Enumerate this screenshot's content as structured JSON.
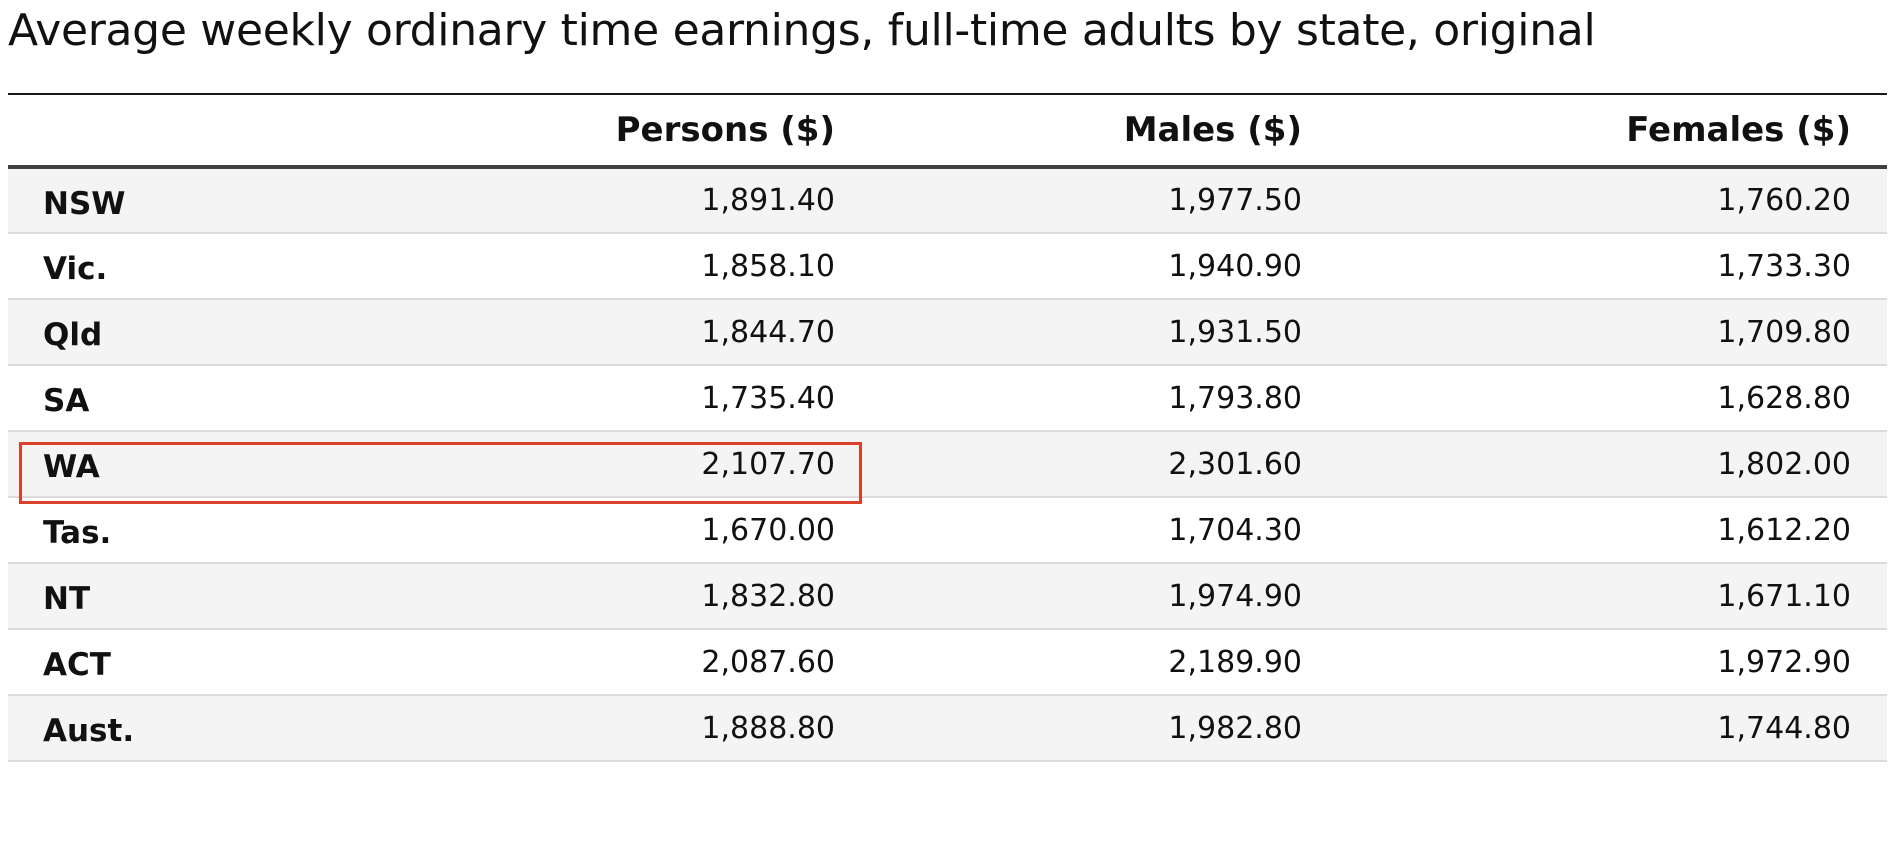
{
  "chart_data": {
    "type": "table",
    "title": "Average weekly ordinary time earnings, full-time adults by state, original",
    "columns": [
      "",
      "Persons ($)",
      "Males ($)",
      "Females ($)"
    ],
    "rows": [
      {
        "label": "NSW",
        "persons": "1,891.40",
        "males": "1,977.50",
        "females": "1,760.20"
      },
      {
        "label": "Vic.",
        "persons": "1,858.10",
        "males": "1,940.90",
        "females": "1,733.30"
      },
      {
        "label": "Qld",
        "persons": "1,844.70",
        "males": "1,931.50",
        "females": "1,709.80"
      },
      {
        "label": "SA",
        "persons": "1,735.40",
        "males": "1,793.80",
        "females": "1,628.80"
      },
      {
        "label": "WA",
        "persons": "2,107.70",
        "males": "2,301.60",
        "females": "1,802.00"
      },
      {
        "label": "Tas.",
        "persons": "1,670.00",
        "males": "1,704.30",
        "females": "1,612.20"
      },
      {
        "label": "NT",
        "persons": "1,832.80",
        "males": "1,974.90",
        "females": "1,671.10"
      },
      {
        "label": "ACT",
        "persons": "2,087.60",
        "males": "2,189.90",
        "females": "1,972.90"
      },
      {
        "label": "Aust.",
        "persons": "1,888.80",
        "males": "1,982.80",
        "females": "1,744.80"
      }
    ],
    "highlight": {
      "row": "WA",
      "columns": [
        "",
        "Persons ($)"
      ]
    }
  },
  "colors": {
    "highlight_border": "#d9412a",
    "stripe": "#f4f4f4",
    "rule": "#dcdcdc"
  }
}
